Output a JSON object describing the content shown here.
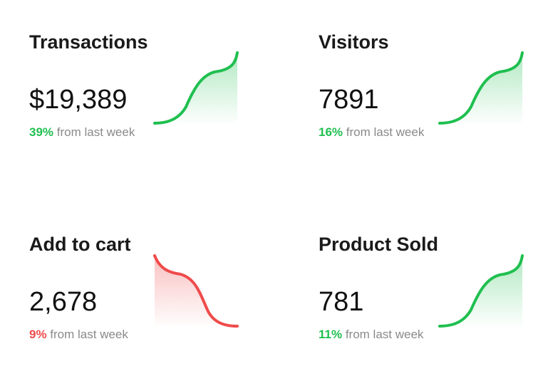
{
  "cards": [
    {
      "title": "Transactions",
      "value": "$19,389",
      "change_pct": "39%",
      "change_suffix": " from last week",
      "trend": "up",
      "color": "#1fbf4f"
    },
    {
      "title": "Visitors",
      "value": "7891",
      "change_pct": "16%",
      "change_suffix": " from last week",
      "trend": "up",
      "color": "#1fbf4f"
    },
    {
      "title": "Add to cart",
      "value": "2,678",
      "change_pct": "9%",
      "change_suffix": " from last week",
      "trend": "down",
      "color": "#ef4b4b"
    },
    {
      "title": "Product Sold",
      "value": "781",
      "change_pct": "11%",
      "change_suffix": " from last week",
      "trend": "up",
      "color": "#1fbf4f"
    }
  ]
}
